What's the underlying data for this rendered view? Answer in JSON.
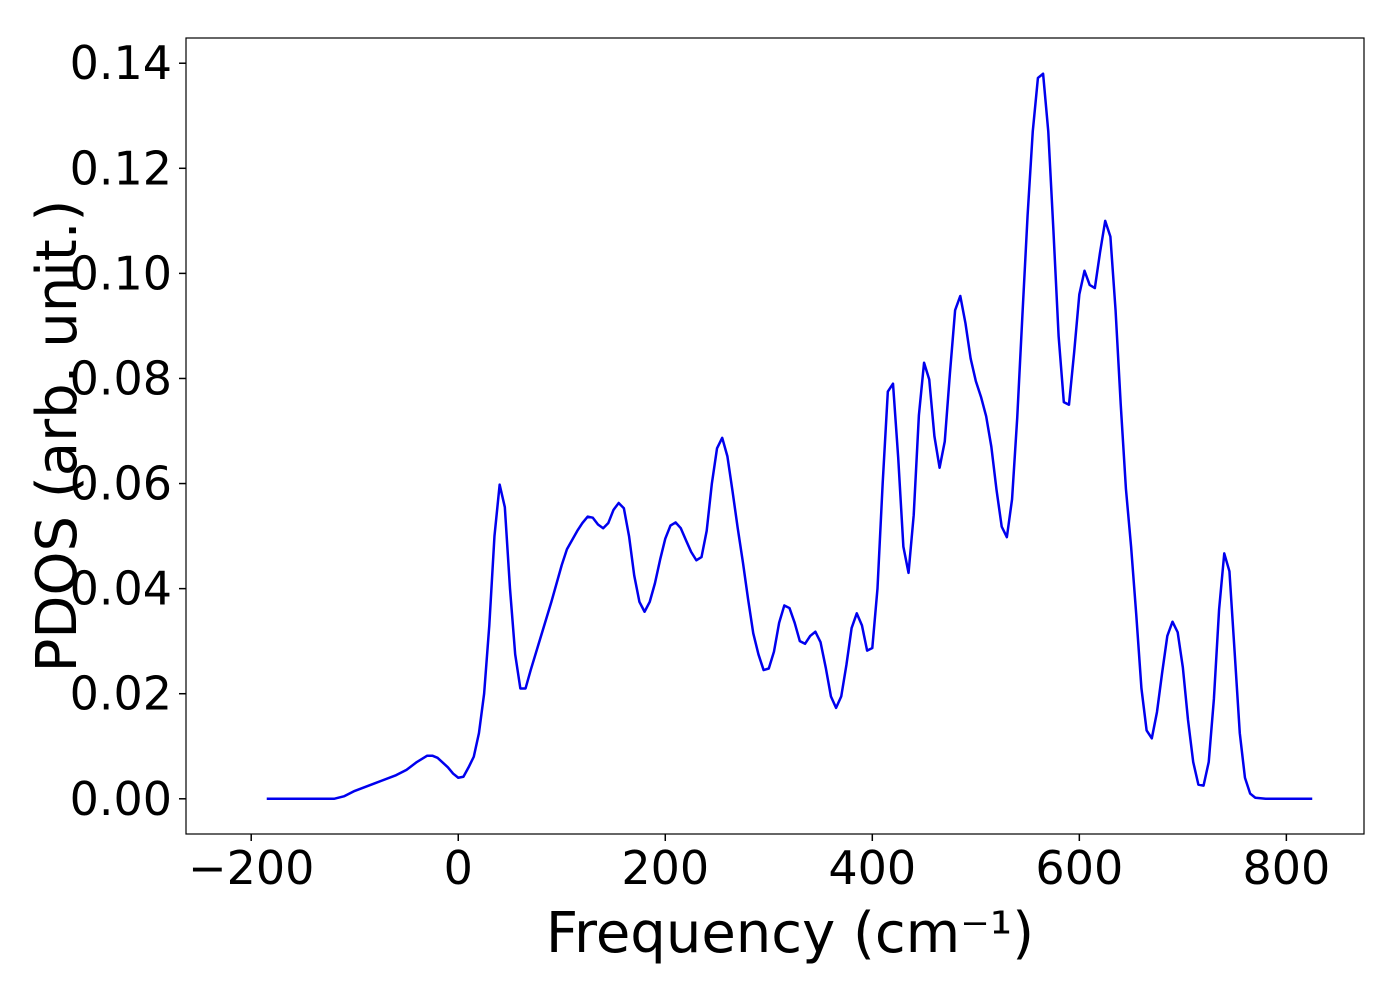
{
  "chart_data": {
    "type": "line",
    "xlabel": "Frequency (cm⁻¹)",
    "ylabel": "PDOS (arb. unit.)",
    "xlim": [
      -263,
      875
    ],
    "ylim": [
      -0.0067,
      0.1448
    ],
    "xticks": [
      {
        "value": -200,
        "label": "−200"
      },
      0,
      200,
      400,
      600,
      800
    ],
    "yticks": [
      {
        "value": 0,
        "label": "0.00"
      },
      {
        "value": 0.02,
        "label": "0.02"
      },
      {
        "value": 0.04,
        "label": "0.04"
      },
      {
        "value": 0.06,
        "label": "0.06"
      },
      {
        "value": 0.08,
        "label": "0.08"
      },
      {
        "value": 0.1,
        "label": "0.10"
      },
      {
        "value": 0.12,
        "label": "0.12"
      },
      {
        "value": 0.14,
        "label": "0.14"
      }
    ],
    "grid": false,
    "x": [
      -185,
      -120,
      -110,
      -100,
      -80,
      -60,
      -50,
      -40,
      -30,
      -25,
      -20,
      -10,
      -5,
      0,
      5,
      10,
      15,
      20,
      25,
      30,
      35,
      40,
      45,
      50,
      55,
      60,
      65,
      70,
      80,
      90,
      100,
      105,
      115,
      120,
      125,
      130,
      135,
      140,
      145,
      150,
      155,
      160,
      165,
      170,
      175,
      180,
      185,
      190,
      195,
      200,
      205,
      210,
      215,
      220,
      225,
      230,
      235,
      240,
      245,
      250,
      255,
      260,
      265,
      270,
      275,
      280,
      285,
      290,
      295,
      300,
      305,
      310,
      315,
      320,
      325,
      330,
      335,
      340,
      345,
      350,
      355,
      360,
      365,
      370,
      375,
      380,
      385,
      390,
      395,
      400,
      405,
      410,
      415,
      420,
      425,
      430,
      435,
      440,
      445,
      450,
      455,
      460,
      465,
      470,
      475,
      480,
      485,
      490,
      495,
      500,
      505,
      510,
      515,
      520,
      525,
      530,
      535,
      540,
      545,
      550,
      555,
      560,
      565,
      570,
      575,
      580,
      585,
      590,
      595,
      600,
      605,
      610,
      615,
      620,
      625,
      630,
      635,
      640,
      645,
      650,
      655,
      660,
      665,
      670,
      675,
      680,
      685,
      690,
      695,
      700,
      705,
      710,
      715,
      720,
      725,
      730,
      735,
      740,
      745,
      750,
      755,
      760,
      765,
      770,
      780,
      825
    ],
    "series": [
      {
        "color": "#0000ee",
        "values": [
          0,
          0,
          0.0005,
          0.0015,
          0.003,
          0.0045,
          0.0055,
          0.007,
          0.0082,
          0.0082,
          0.0078,
          0.006,
          0.0048,
          0.004,
          0.0042,
          0.006,
          0.008,
          0.0125,
          0.02,
          0.033,
          0.05,
          0.0598,
          0.0555,
          0.04,
          0.0275,
          0.021,
          0.021,
          0.0245,
          0.031,
          0.0375,
          0.0445,
          0.0475,
          0.051,
          0.0525,
          0.0537,
          0.0535,
          0.0522,
          0.0515,
          0.0525,
          0.055,
          0.0563,
          0.0553,
          0.05,
          0.0425,
          0.0375,
          0.0356,
          0.0375,
          0.041,
          0.0455,
          0.0495,
          0.052,
          0.0526,
          0.0515,
          0.0492,
          0.047,
          0.0454,
          0.046,
          0.051,
          0.06,
          0.0667,
          0.0687,
          0.0652,
          0.0585,
          0.0515,
          0.045,
          0.038,
          0.0315,
          0.0275,
          0.0245,
          0.0248,
          0.028,
          0.0335,
          0.0368,
          0.0363,
          0.0335,
          0.03,
          0.0295,
          0.031,
          0.0318,
          0.0298,
          0.025,
          0.0195,
          0.0173,
          0.0195,
          0.0255,
          0.0325,
          0.0353,
          0.033,
          0.0282,
          0.0287,
          0.04,
          0.06,
          0.0775,
          0.079,
          0.065,
          0.048,
          0.043,
          0.054,
          0.073,
          0.083,
          0.0798,
          0.069,
          0.063,
          0.068,
          0.081,
          0.093,
          0.0957,
          0.0905,
          0.0838,
          0.0795,
          0.0765,
          0.0728,
          0.067,
          0.0588,
          0.0518,
          0.0498,
          0.057,
          0.0725,
          0.092,
          0.111,
          0.127,
          0.1372,
          0.138,
          0.127,
          0.108,
          0.088,
          0.0755,
          0.075,
          0.085,
          0.096,
          0.1005,
          0.0978,
          0.0972,
          0.104,
          0.11,
          0.107,
          0.093,
          0.075,
          0.059,
          0.048,
          0.035,
          0.021,
          0.013,
          0.0115,
          0.0165,
          0.024,
          0.031,
          0.0337,
          0.0317,
          0.025,
          0.015,
          0.007,
          0.0027,
          0.0025,
          0.007,
          0.019,
          0.036,
          0.0467,
          0.0433,
          0.028,
          0.0125,
          0.004,
          0.001,
          0.0002,
          0,
          0
        ]
      }
    ]
  }
}
